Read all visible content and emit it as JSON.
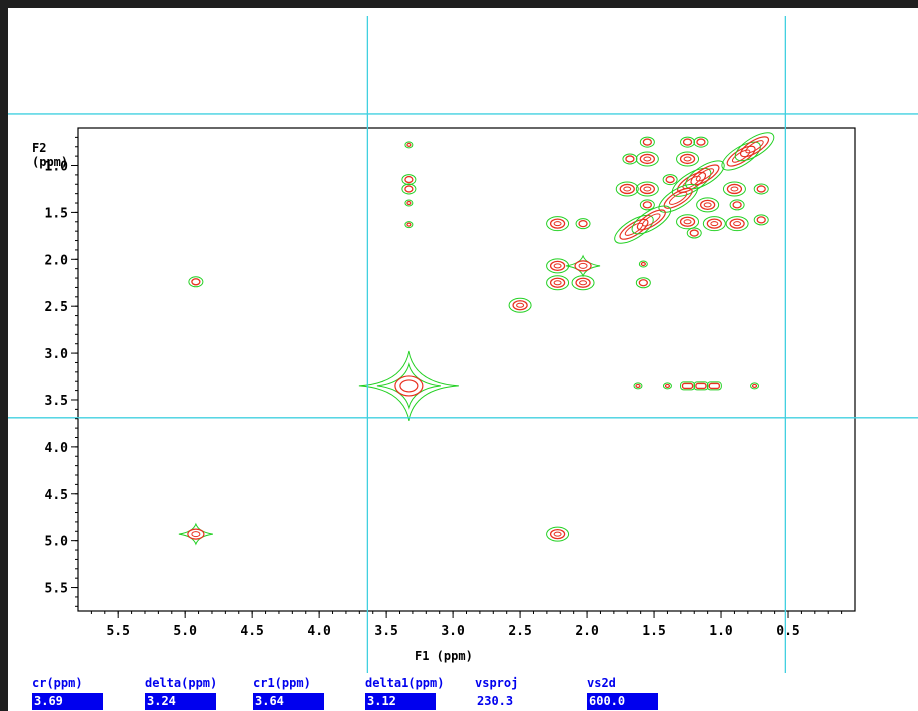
{
  "colors": {
    "frame": "#1f1f1f",
    "cursor_line": "#40d0e0",
    "contour_outer": "#22d022",
    "contour_inner": "#e83020",
    "param_field_bg": "#0000ee",
    "param_label": "#0000ee"
  },
  "chart_data": {
    "type": "contour",
    "xlabel": "F1 (ppm)",
    "ylabel": "F2\n(ppm)",
    "xlim": [
      5.8,
      0.0
    ],
    "ylim": [
      0.6,
      5.75
    ],
    "x_ticks": [
      "5.5",
      "5.0",
      "4.5",
      "4.0",
      "3.5",
      "3.0",
      "2.5",
      "2.0",
      "1.5",
      "1.0",
      "0.5"
    ],
    "y_ticks": [
      "1.0",
      "1.5",
      "2.0",
      "2.5",
      "3.0",
      "3.5",
      "4.0",
      "4.5",
      "5.0",
      "5.5"
    ],
    "cursors": {
      "vertical_f1": 3.64,
      "horizontal_f2_top": 0.45,
      "horizontal_f2_bottom": 3.69,
      "vertical_f1_right": 0.52
    },
    "peaks": [
      {
        "x": 4.92,
        "y": 2.24,
        "size": "small"
      },
      {
        "x": 4.92,
        "y": 4.93,
        "size": "cross"
      },
      {
        "x": 3.33,
        "y": 0.78,
        "size": "dot"
      },
      {
        "x": 3.33,
        "y": 1.15,
        "size": "small"
      },
      {
        "x": 3.33,
        "y": 1.25,
        "size": "small"
      },
      {
        "x": 3.33,
        "y": 1.4,
        "size": "dot"
      },
      {
        "x": 3.33,
        "y": 1.63,
        "size": "dot"
      },
      {
        "x": 3.33,
        "y": 3.35,
        "size": "solvent"
      },
      {
        "x": 2.5,
        "y": 2.49,
        "size": "medium"
      },
      {
        "x": 2.22,
        "y": 1.62,
        "size": "medium"
      },
      {
        "x": 2.03,
        "y": 1.62,
        "size": "small"
      },
      {
        "x": 2.22,
        "y": 2.07,
        "size": "medium"
      },
      {
        "x": 2.22,
        "y": 2.25,
        "size": "medium"
      },
      {
        "x": 2.03,
        "y": 2.07,
        "size": "cross"
      },
      {
        "x": 2.03,
        "y": 2.25,
        "size": "medium"
      },
      {
        "x": 2.22,
        "y": 4.93,
        "size": "medium"
      },
      {
        "x": 1.55,
        "y": 0.75,
        "size": "small"
      },
      {
        "x": 1.25,
        "y": 0.75,
        "size": "small"
      },
      {
        "x": 1.15,
        "y": 0.75,
        "size": "small"
      },
      {
        "x": 1.68,
        "y": 0.93,
        "size": "small"
      },
      {
        "x": 1.55,
        "y": 0.93,
        "size": "medium"
      },
      {
        "x": 1.25,
        "y": 0.93,
        "size": "medium"
      },
      {
        "x": 0.85,
        "y": 0.9,
        "size": "diag"
      },
      {
        "x": 0.75,
        "y": 0.8,
        "size": "diag"
      },
      {
        "x": 1.7,
        "y": 1.25,
        "size": "medium"
      },
      {
        "x": 1.55,
        "y": 1.25,
        "size": "medium"
      },
      {
        "x": 1.38,
        "y": 1.15,
        "size": "small"
      },
      {
        "x": 1.22,
        "y": 1.18,
        "size": "diag"
      },
      {
        "x": 1.12,
        "y": 1.1,
        "size": "diag"
      },
      {
        "x": 0.9,
        "y": 1.25,
        "size": "medium"
      },
      {
        "x": 0.7,
        "y": 1.25,
        "size": "small"
      },
      {
        "x": 1.55,
        "y": 1.42,
        "size": "small"
      },
      {
        "x": 1.32,
        "y": 1.35,
        "size": "diag"
      },
      {
        "x": 1.1,
        "y": 1.42,
        "size": "medium"
      },
      {
        "x": 0.88,
        "y": 1.42,
        "size": "small"
      },
      {
        "x": 1.65,
        "y": 1.68,
        "size": "diag"
      },
      {
        "x": 1.52,
        "y": 1.58,
        "size": "diag"
      },
      {
        "x": 1.25,
        "y": 1.6,
        "size": "medium"
      },
      {
        "x": 1.2,
        "y": 1.72,
        "size": "small"
      },
      {
        "x": 1.05,
        "y": 1.62,
        "size": "medium"
      },
      {
        "x": 0.88,
        "y": 1.62,
        "size": "medium"
      },
      {
        "x": 0.7,
        "y": 1.58,
        "size": "small"
      },
      {
        "x": 1.58,
        "y": 2.05,
        "size": "dot"
      },
      {
        "x": 1.58,
        "y": 2.25,
        "size": "small"
      },
      {
        "x": 1.62,
        "y": 3.35,
        "size": "dot"
      },
      {
        "x": 1.4,
        "y": 3.35,
        "size": "dot"
      },
      {
        "x": 1.25,
        "y": 3.35,
        "size": "bar"
      },
      {
        "x": 1.15,
        "y": 3.35,
        "size": "bar"
      },
      {
        "x": 1.05,
        "y": 3.35,
        "size": "bar"
      },
      {
        "x": 0.75,
        "y": 3.35,
        "size": "dot"
      }
    ]
  },
  "params": [
    {
      "label": "cr(ppm)",
      "value": "3.69",
      "highlight": true
    },
    {
      "label": "delta(ppm)",
      "value": "3.24",
      "highlight": true
    },
    {
      "label": "cr1(ppm)",
      "value": "3.64",
      "highlight": true
    },
    {
      "label": "delta1(ppm)",
      "value": "3.12",
      "highlight": true
    },
    {
      "label": "vsproj",
      "value": "230.3",
      "highlight": false
    },
    {
      "label": "vs2d",
      "value": "600.0",
      "highlight": true
    }
  ]
}
